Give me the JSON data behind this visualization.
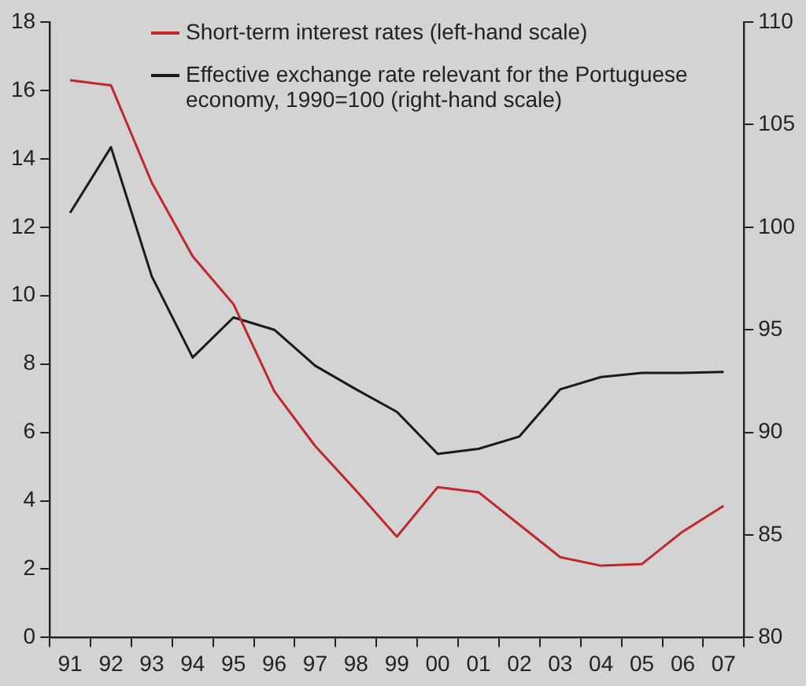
{
  "chart_data": {
    "type": "line",
    "categories": [
      "91",
      "92",
      "93",
      "94",
      "95",
      "96",
      "97",
      "98",
      "99",
      "00",
      "01",
      "02",
      "03",
      "04",
      "05",
      "06",
      "07"
    ],
    "series": [
      {
        "name": "Short-term interest rates (left-hand scale)",
        "color": "#c0272d",
        "values": [
          16.3,
          16.15,
          13.3,
          11.15,
          9.75,
          7.2,
          5.6,
          4.3,
          2.95,
          4.4,
          4.25,
          3.3,
          2.35,
          2.1,
          2.15,
          3.1,
          3.85
        ]
      },
      {
        "name": "Effective exchange rate relevant for the Portuguese economy, 1990=100 (right-hand scale)",
        "color": "#1a1a1a",
        "axis": "y2",
        "values": [
          100.7,
          103.9,
          97.6,
          93.65,
          95.6,
          95.0,
          93.25,
          92.1,
          91.0,
          88.95,
          89.2,
          89.8,
          92.1,
          92.7,
          92.9,
          92.9,
          92.95
        ]
      }
    ],
    "ylim": [
      0,
      18
    ],
    "yticks": [
      0,
      2,
      4,
      6,
      8,
      10,
      12,
      14,
      16,
      18
    ],
    "y2lim": [
      80,
      110
    ],
    "y2ticks": [
      80,
      85,
      90,
      95,
      100,
      105,
      110
    ],
    "grid": false,
    "legend": "top",
    "marker": "none",
    "line_style": "solid"
  }
}
